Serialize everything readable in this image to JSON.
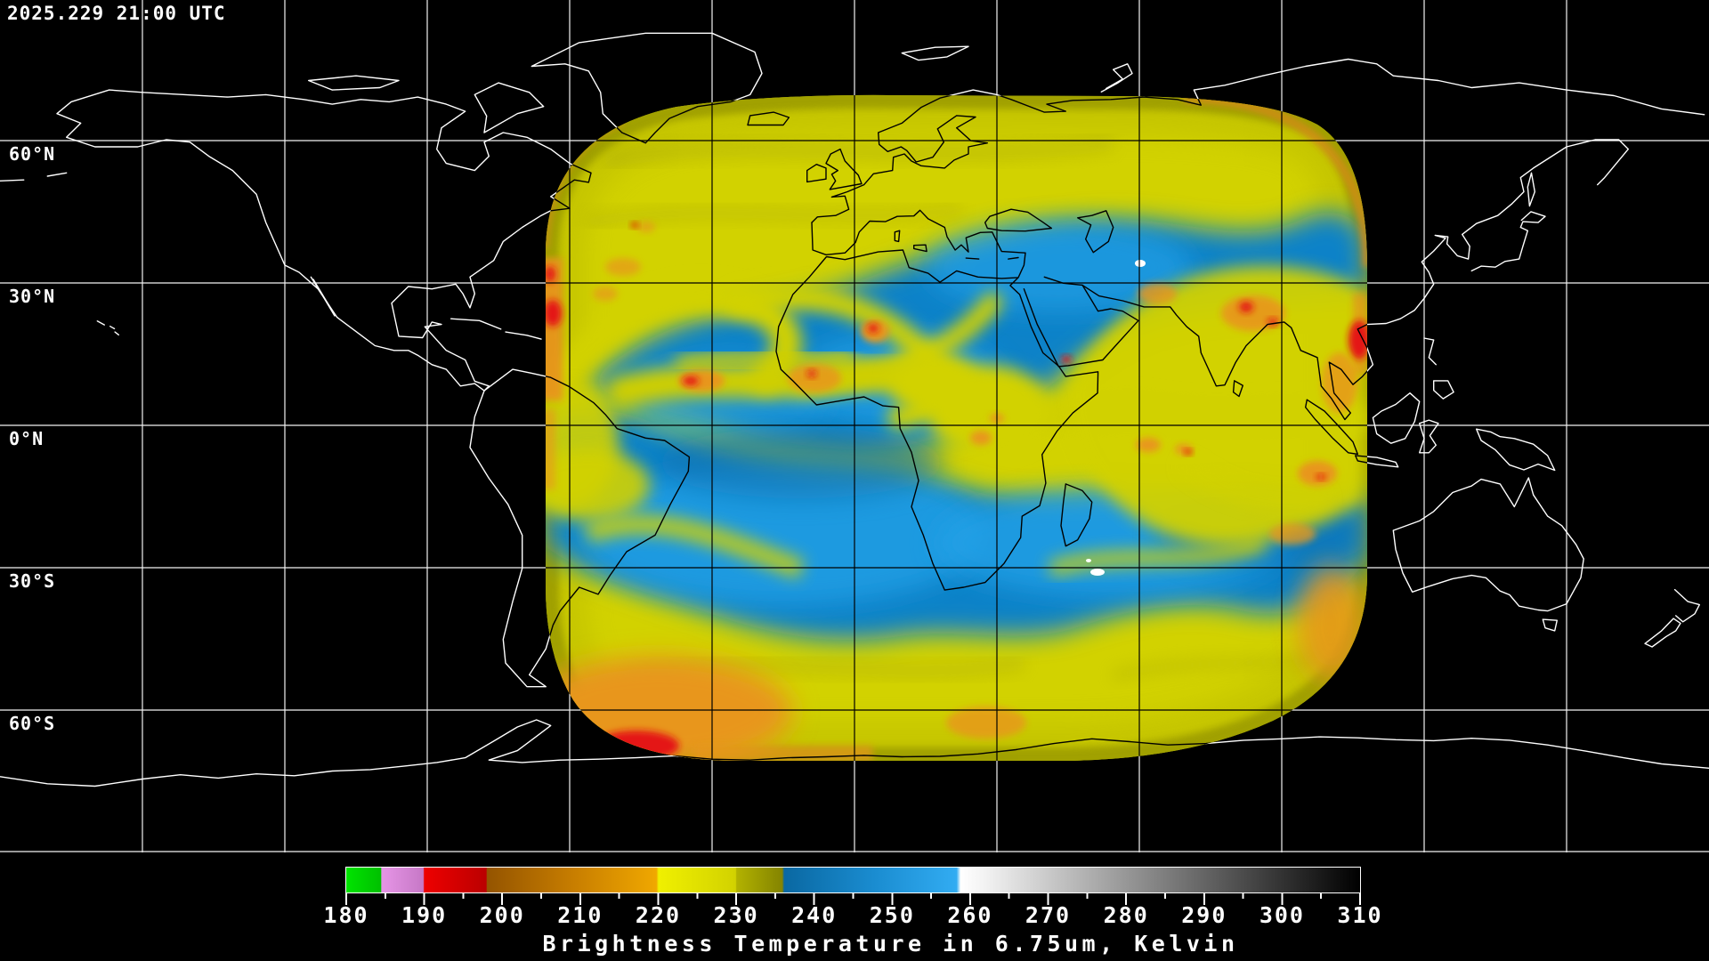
{
  "header": {
    "timestamp": "2025.229 21:00 UTC"
  },
  "map": {
    "lat_labels": [
      "60°N",
      "30°N",
      "0°N",
      "30°S",
      "60°S"
    ],
    "background_color": "#000000",
    "gridline_color_outside_swath": "#ffffff",
    "gridline_color_inside_swath": "#000000",
    "coastline_color_outside_swath": "#ffffff",
    "coastline_color_inside_swath": "#000000"
  },
  "swath_colors": {
    "moist_yellow": "#d2d200",
    "olive_rim": "#9a9a00",
    "dry_blue": "#0f82c8",
    "bright_blue": "#22a0e6",
    "cold_orange": "#e8961e",
    "very_cold_red": "#e41212",
    "warm_white_speck": "#ffffff"
  },
  "colorbar": {
    "caption": "Brightness Temperature in 6.75um, Kelvin",
    "unit": "Kelvin",
    "min": 180,
    "max": 310,
    "tick_step": 10,
    "minor_tick_step": 5,
    "tick_labels": [
      "180",
      "190",
      "200",
      "210",
      "220",
      "230",
      "240",
      "250",
      "260",
      "270",
      "280",
      "290",
      "300",
      "310"
    ],
    "segments": [
      {
        "from": 180,
        "to": 184.5,
        "color": "#00dd00",
        "name": "green"
      },
      {
        "from": 184.5,
        "to": 190,
        "color": "#d98ad9",
        "name": "violet"
      },
      {
        "from": 190,
        "to": 198,
        "color": "#dd0000",
        "name": "red"
      },
      {
        "from": 198,
        "to": 220,
        "color": "#c87e00",
        "name": "orange-brown gradient"
      },
      {
        "from": 220,
        "to": 230,
        "color": "#e8e800",
        "name": "yellow"
      },
      {
        "from": 230,
        "to": 236,
        "color": "#8c8c00",
        "name": "olive"
      },
      {
        "from": 236,
        "to": 259,
        "color": "#1a8cd0",
        "name": "blue gradient"
      },
      {
        "from": 259,
        "to": 310,
        "color": "#ffffff",
        "name": "white to black grayscale"
      }
    ]
  }
}
